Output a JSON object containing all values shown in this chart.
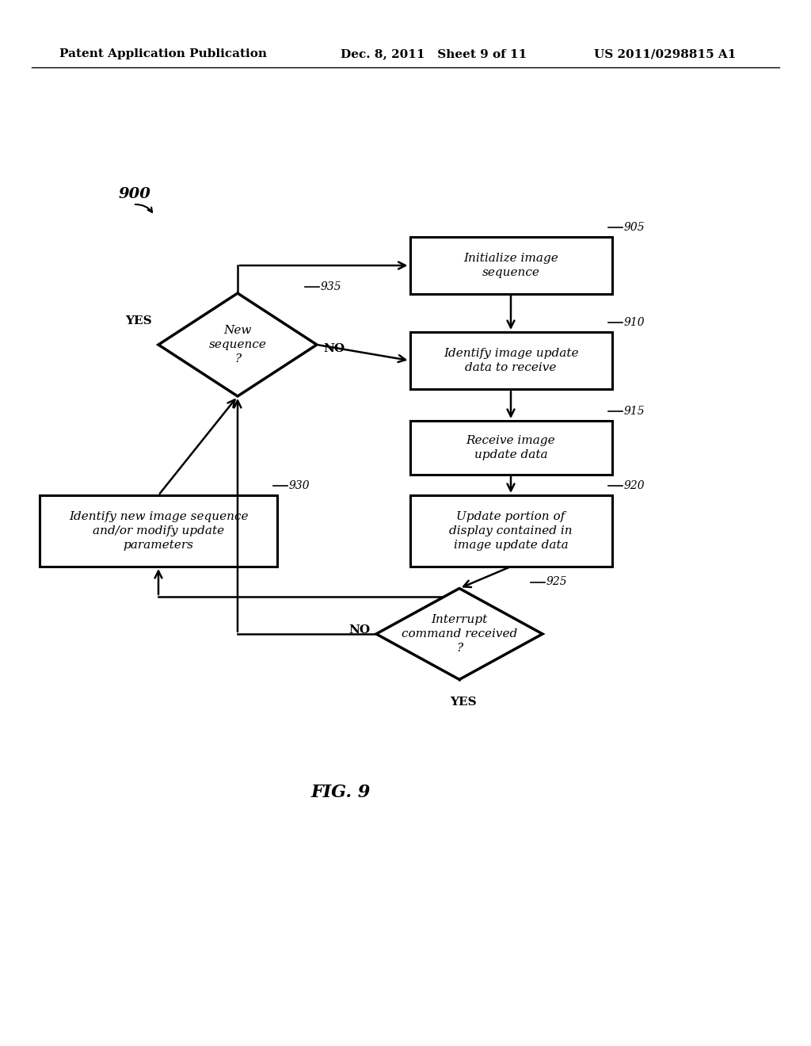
{
  "background_color": "#ffffff",
  "header_left": "Patent Application Publication",
  "header_mid": "Dec. 8, 2011   Sheet 9 of 11",
  "header_right": "US 2011/0298815 A1",
  "figure_label": "FIG. 9",
  "diagram_label": "900"
}
